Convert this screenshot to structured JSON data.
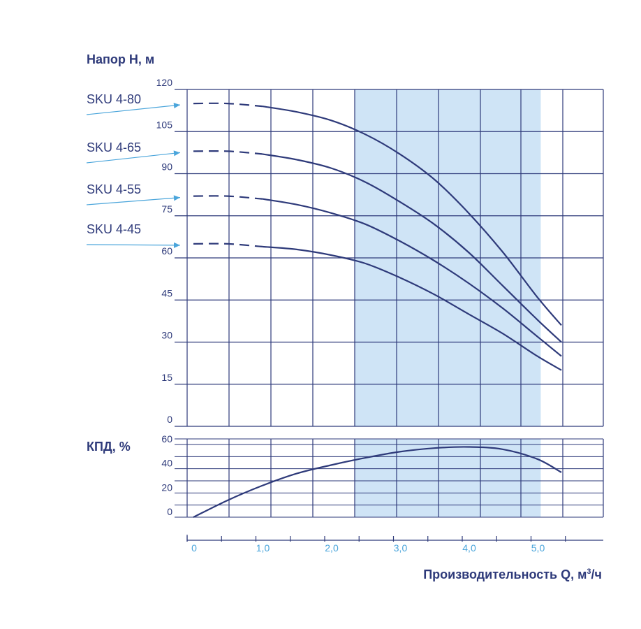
{
  "colors": {
    "curve": "#2e3a7a",
    "grid": "#2e3a7a",
    "band": "#cfe4f6",
    "arrow": "#4aa5db",
    "xtick": "#4aa5db"
  },
  "chart_data": [
    {
      "type": "line",
      "ylabel": "Напор Н, м",
      "ylim": [
        0,
        120
      ],
      "yticks": [
        "0",
        "15",
        "30",
        "45",
        "60",
        "75",
        "90",
        "105",
        "120"
      ],
      "series": [
        {
          "name": "SKU 4-80",
          "x": [
            0.0,
            0.5,
            1.0,
            1.5,
            2.0,
            2.5,
            3.0,
            3.5,
            4.0,
            4.5,
            5.0,
            5.35
          ],
          "values": [
            115,
            115,
            114,
            112,
            109,
            104,
            97,
            88,
            76,
            62,
            46,
            36
          ],
          "dashed_until": 1.0
        },
        {
          "name": "SKU 4-65",
          "x": [
            0.0,
            0.5,
            1.0,
            1.5,
            2.0,
            2.5,
            3.0,
            3.5,
            4.0,
            4.5,
            5.0,
            5.35
          ],
          "values": [
            98,
            98,
            97,
            95,
            92,
            87,
            80,
            72,
            62,
            50,
            38,
            30
          ],
          "dashed_until": 1.0
        },
        {
          "name": "SKU 4-55",
          "x": [
            0.0,
            0.5,
            1.0,
            1.5,
            2.0,
            2.5,
            3.0,
            3.5,
            4.0,
            4.5,
            5.0,
            5.35
          ],
          "values": [
            82,
            82,
            81,
            79,
            76,
            72,
            66,
            59,
            51,
            42,
            32,
            25
          ],
          "dashed_until": 1.0
        },
        {
          "name": "SKU 4-45",
          "x": [
            0.0,
            0.5,
            1.0,
            1.5,
            2.0,
            2.5,
            3.0,
            3.5,
            4.0,
            4.5,
            5.0,
            5.35
          ],
          "values": [
            65,
            65,
            64,
            63,
            61,
            58,
            53,
            47,
            40,
            33,
            25,
            20
          ],
          "dashed_until": 1.0
        }
      ]
    },
    {
      "type": "line",
      "ylabel": "КПД, %",
      "ylim": [
        0,
        60
      ],
      "yticks": [
        "0",
        "20",
        "40",
        "60"
      ],
      "series": [
        {
          "x": [
            0.0,
            0.5,
            1.0,
            1.5,
            2.0,
            2.5,
            3.0,
            3.5,
            4.0,
            4.5,
            5.0,
            5.35
          ],
          "values": [
            0,
            14,
            26,
            36,
            43,
            49,
            54,
            57,
            58,
            56,
            48,
            37
          ]
        }
      ]
    }
  ],
  "x_axis": {
    "label_prefix": "Производительность Q, м",
    "label_sup": "3",
    "label_suffix": "/ч",
    "xlim": [
      0,
      5.9
    ],
    "tick_labels": [
      {
        "value": 0,
        "label": "0"
      },
      {
        "value": 1.0,
        "label": "1,0"
      },
      {
        "value": 2.0,
        "label": "2,0"
      },
      {
        "value": 3.0,
        "label": "3,0"
      },
      {
        "value": 4.0,
        "label": "4,0"
      },
      {
        "value": 5.0,
        "label": "5,0"
      }
    ],
    "minor_ticks": [
      0,
      0.5,
      1.0,
      1.5,
      2.0,
      2.5,
      3.0,
      3.5,
      4.0,
      4.5,
      5.0,
      5.5
    ],
    "shaded_range": [
      2.35,
      5.05
    ]
  }
}
